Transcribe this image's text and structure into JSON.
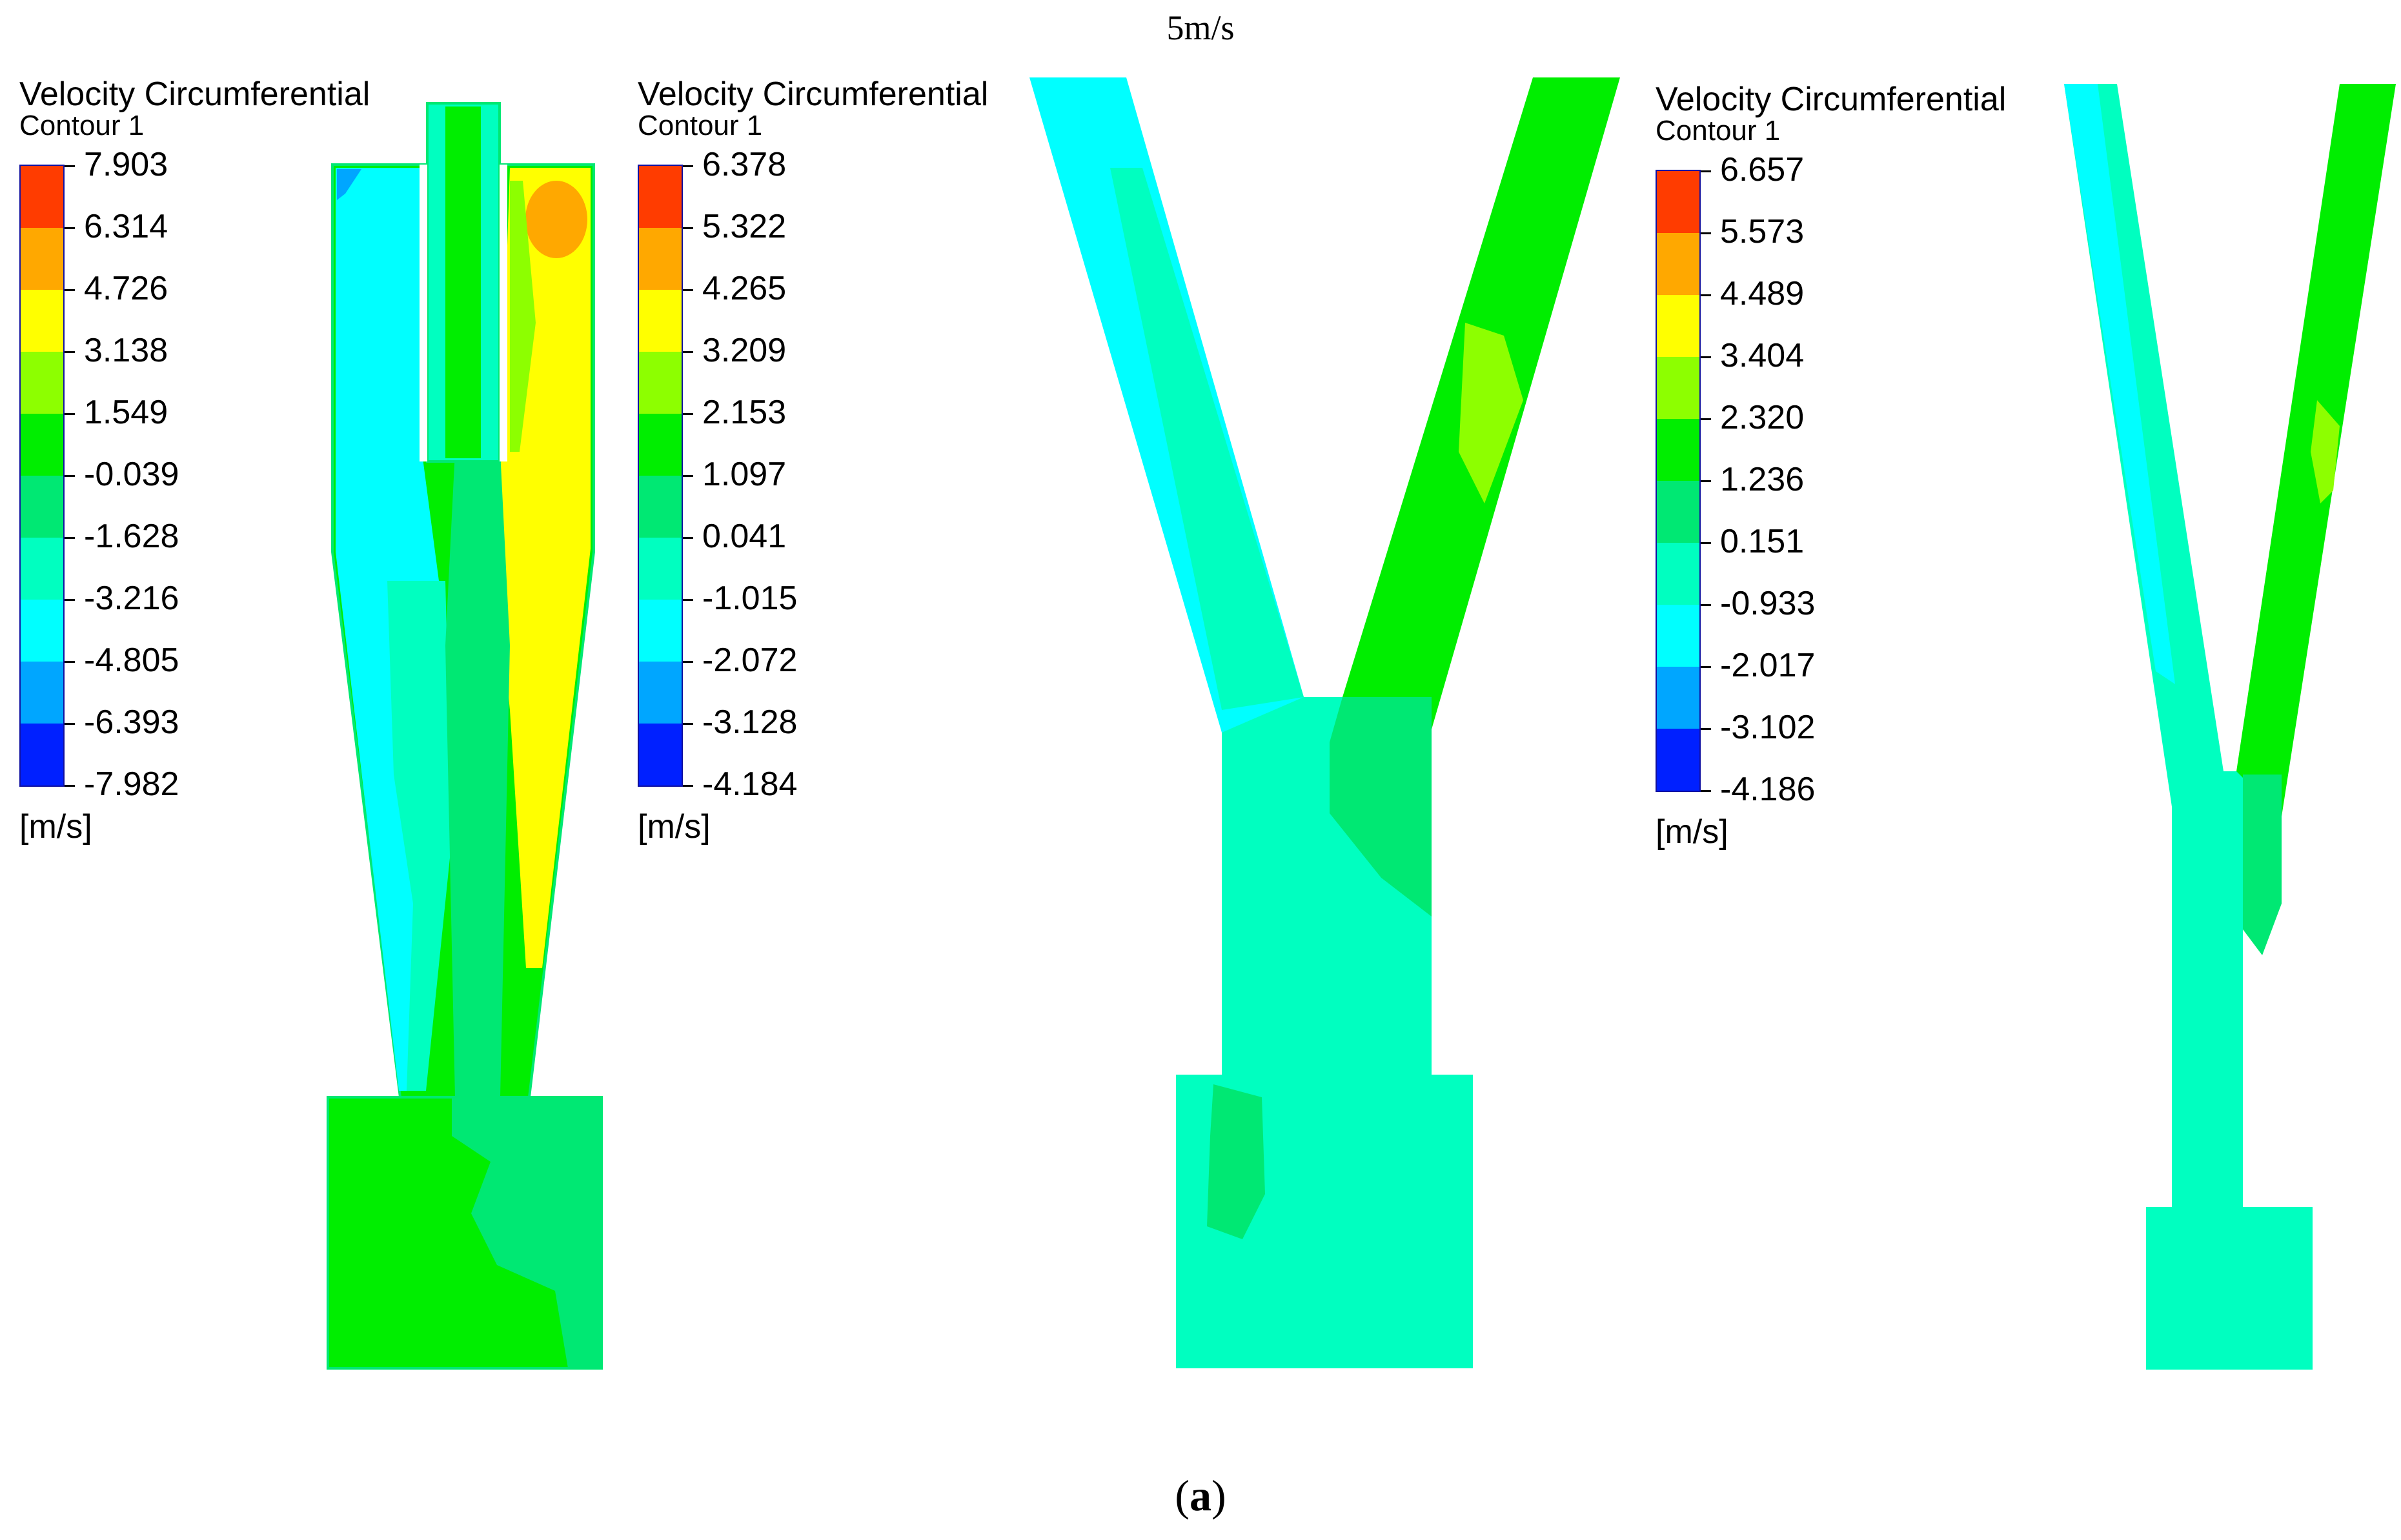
{
  "figure": {
    "title": "5m/s",
    "caption_letter": "a"
  },
  "palette": [
    "#ff3c00",
    "#ffa800",
    "#ffff00",
    "#8dff00",
    "#00ee00",
    "#00e873",
    "#00ffc0",
    "#00ffff",
    "#00a6ff",
    "#0020ff"
  ],
  "legends": [
    {
      "title": "Velocity Circumferential",
      "subtitle": "Contour 1",
      "labels": [
        "7.903",
        "6.314",
        "4.726",
        "3.138",
        "1.549",
        "-0.039",
        "-1.628",
        "-3.216",
        "-4.805",
        "-6.393",
        "-7.982"
      ],
      "unit": "[m/s]"
    },
    {
      "title": "Velocity Circumferential",
      "subtitle": "Contour 1",
      "labels": [
        "6.378",
        "5.322",
        "4.265",
        "3.209",
        "2.153",
        "1.097",
        "0.041",
        "-1.015",
        "-2.072",
        "-3.128",
        "-4.184"
      ],
      "unit": "[m/s]"
    },
    {
      "title": "Velocity Circumferential",
      "subtitle": "Contour 1",
      "labels": [
        "6.657",
        "5.573",
        "4.489",
        "3.404",
        "2.320",
        "1.236",
        "0.151",
        "-0.933",
        "-2.017",
        "-3.102",
        "-4.186"
      ],
      "unit": "[m/s]"
    }
  ],
  "contour_colors": {
    "cyan": "#00ffff",
    "aqua_green": "#00ffc0",
    "green": "#00ee00",
    "light_green": "#00e873",
    "yellow": "#ffff00",
    "orange": "#ffa800",
    "blue": "#00a6ff",
    "lime": "#8dff00"
  }
}
